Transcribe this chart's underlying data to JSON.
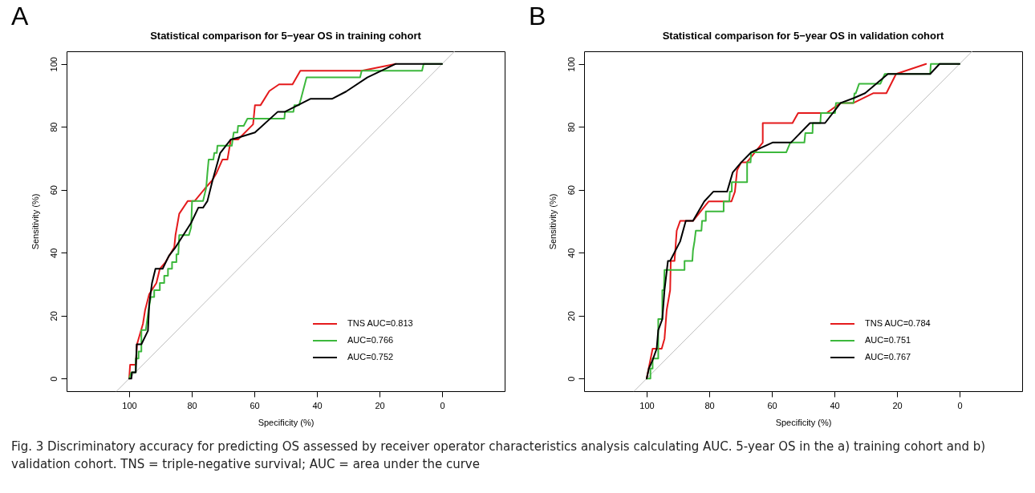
{
  "chart_data": [
    {
      "type": "line",
      "title": "Statistical comparison for 5−year OS in training cohort",
      "xlabel": "Specificity (%)",
      "ylabel": "Sensitivity (%)",
      "xlim": [
        120,
        -20
      ],
      "ylim": [
        -4,
        104
      ],
      "xticks": [
        100,
        80,
        60,
        40,
        20,
        0
      ],
      "yticks": [
        0,
        20,
        40,
        60,
        80,
        100
      ],
      "legend": "bottom right",
      "annotations": [
        "A",
        "Fig. 3 Discriminatory accuracy for predicting OS assessed by receiver operator characteristics analysis calculating AUC. 5-year OS in the a) training cohort and b) validation cohort. TNS = triple-negative survival; AUC = area under the curve"
      ],
      "series": [
        {
          "color": "#bebebe",
          "x": [
            104,
            -4
          ],
          "values": [
            -4,
            104
          ]
        },
        {
          "name": "TNS AUC=0.813",
          "color": "#e41a1c",
          "x": [
            100,
            99.7,
            97.9,
            97.5,
            95.6,
            94.9,
            93.6,
            91.3,
            90.2,
            88.4,
            85.6,
            85.2,
            84.0,
            81.3,
            79.1,
            75.7,
            73.4,
            72.1,
            70.2,
            68.6,
            67.5,
            65.2,
            60.4,
            59.8,
            58.0,
            55.2,
            52.1,
            47.8,
            45.3,
            25.7,
            14.8
          ],
          "values": [
            0,
            4.4,
            4.4,
            10.9,
            17.4,
            21.8,
            26.8,
            30.4,
            34.9,
            37.0,
            41.7,
            45.6,
            52.4,
            56.4,
            56.4,
            60.5,
            63.1,
            65.3,
            69.6,
            69.6,
            76.0,
            76.0,
            80.8,
            86.9,
            86.9,
            91.4,
            93.5,
            93.5,
            97.8,
            97.8,
            100
          ]
        },
        {
          "name": "AUC=0.766",
          "color": "#3cb83c",
          "x": [
            100,
            99.3,
            97.9,
            97.9,
            97.0,
            97.0,
            96.1,
            96.1,
            94.7,
            93.8,
            93.1,
            92.0,
            92.0,
            90.2,
            90.2,
            88.8,
            88.8,
            87.6,
            87.6,
            86.3,
            86.3,
            84.9,
            84.9,
            84.3,
            84.0,
            80.9,
            80.2,
            79.9,
            76.4,
            75.9,
            75.4,
            75.0,
            74.6,
            73.1,
            72.8,
            72.0,
            71.8,
            67.2,
            66.6,
            65.4,
            65.2,
            63.4,
            62.2,
            50.4,
            50.2,
            47.5,
            47.2,
            45.7,
            45.1,
            44.5,
            43.3,
            26.2,
            25.7,
            6.4,
            5.9,
            0
          ],
          "values": [
            0,
            2.0,
            2.0,
            6.4,
            6.4,
            8.6,
            8.6,
            15.4,
            15.4,
            21.8,
            25.9,
            25.9,
            28.1,
            28.1,
            30.4,
            30.4,
            32.7,
            32.7,
            34.9,
            34.9,
            37.0,
            37.0,
            39.5,
            39.5,
            45.6,
            45.6,
            48.1,
            56.4,
            56.4,
            58.5,
            60.5,
            65.3,
            69.6,
            69.6,
            71.7,
            71.7,
            74.0,
            74.0,
            78.2,
            78.2,
            80.3,
            80.3,
            82.6,
            82.6,
            84.8,
            84.8,
            86.9,
            86.9,
            88.9,
            91.2,
            95.7,
            95.7,
            97.8,
            97.8,
            100,
            100
          ]
        },
        {
          "name": "AUC=0.752",
          "color": "#000000",
          "x": [
            100,
            99.3,
            99.1,
            97.9,
            97.6,
            96.1,
            94.0,
            93.6,
            92.7,
            91.6,
            89.3,
            87.3,
            85.2,
            80.2,
            77.9,
            76.4,
            75.0,
            73.4,
            70.9,
            67.5,
            64.8,
            59.8,
            52.5,
            50.2,
            42.1,
            35.2,
            30.7,
            23.9,
            14.8,
            0
          ],
          "values": [
            0,
            0,
            2.0,
            2.0,
            10.9,
            10.9,
            15.2,
            23.6,
            30.4,
            34.9,
            34.9,
            39.0,
            41.7,
            49.5,
            54.3,
            54.3,
            56.4,
            62.8,
            71.7,
            76.0,
            76.7,
            78.2,
            84.8,
            84.8,
            88.9,
            88.9,
            91.2,
            95.7,
            100,
            100
          ]
        }
      ]
    },
    {
      "type": "line",
      "title": "Statistical comparison for 5−year OS in validation cohort",
      "xlabel": "Specificity (%)",
      "ylabel": "Sensitivity (%)",
      "xlim": [
        120,
        -20
      ],
      "ylim": [
        -4,
        104
      ],
      "xticks": [
        100,
        80,
        60,
        40,
        20,
        0
      ],
      "yticks": [
        0,
        20,
        40,
        60,
        80,
        100
      ],
      "legend": "bottom right",
      "annotations": [
        "B"
      ],
      "series": [
        {
          "color": "#bebebe",
          "x": [
            104,
            -4
          ],
          "values": [
            -4,
            104
          ]
        },
        {
          "name": "TNS AUC=0.784",
          "color": "#e41a1c",
          "x": [
            100,
            98.1,
            95.2,
            94.3,
            93.6,
            92.5,
            92.3,
            91.1,
            90.4,
            89.3,
            85.2,
            80.2,
            72.9,
            71.8,
            71.1,
            69.8,
            68.0,
            62.9,
            62.9,
            53.4,
            51.6,
            42.5,
            38.0,
            33.9,
            27.5,
            23.4,
            20.3,
            10.7
          ],
          "values": [
            0,
            9.5,
            9.5,
            12.7,
            21.8,
            28.1,
            37.4,
            37.4,
            47.0,
            50.1,
            50.1,
            56.3,
            56.3,
            59.4,
            66.2,
            68.7,
            68.7,
            75.0,
            81.2,
            81.2,
            84.4,
            84.4,
            87.6,
            87.6,
            90.7,
            90.7,
            96.8,
            100
          ]
        },
        {
          "name": "AUC=0.751",
          "color": "#3cb83c",
          "x": [
            100,
            98.8,
            98.8,
            98.1,
            98.1,
            96.3,
            96.3,
            95.0,
            95.0,
            94.5,
            94.3,
            87.9,
            87.9,
            85.4,
            85.2,
            84.7,
            84.3,
            82.5,
            82.3,
            81.1,
            81.1,
            75.4,
            75.4,
            73.6,
            73.4,
            72.8,
            72.8,
            67.9,
            67.9,
            66.8,
            66.6,
            55.4,
            54.1,
            49.6,
            49.3,
            47.0,
            46.9,
            44.5,
            44.3,
            39.8,
            39.5,
            33.9,
            33.6,
            33.2,
            32.1,
            25.3,
            23.9,
            9.4,
            9.2,
            0
          ],
          "values": [
            0,
            0,
            3.2,
            3.2,
            6.4,
            6.4,
            18.9,
            18.9,
            28.1,
            28.1,
            34.5,
            34.5,
            37.4,
            37.4,
            40.7,
            43.7,
            47.0,
            47.0,
            50.1,
            50.1,
            53.1,
            53.1,
            56.3,
            56.3,
            59.4,
            59.4,
            62.4,
            62.4,
            68.7,
            68.7,
            71.9,
            71.9,
            75.0,
            75.0,
            78.0,
            78.0,
            81.2,
            81.2,
            84.4,
            84.4,
            87.6,
            87.6,
            90.6,
            90.6,
            93.7,
            93.7,
            96.8,
            96.8,
            100,
            100
          ]
        },
        {
          "name": "AUC=0.767",
          "color": "#000000",
          "x": [
            100,
            99.3,
            98.1,
            96.8,
            96.3,
            95.0,
            94.3,
            93.2,
            92.5,
            89.3,
            87.5,
            85.2,
            81.6,
            78.7,
            74.3,
            72.5,
            69.8,
            66.6,
            59.8,
            53.9,
            47.8,
            43.0,
            38.0,
            33.9,
            30.2,
            22.9,
            20.3,
            9.4,
            6.4,
            0
          ],
          "values": [
            0,
            3.2,
            5.9,
            9.5,
            15.4,
            18.9,
            28.1,
            37.4,
            37.4,
            43.6,
            50.1,
            50.1,
            56.3,
            59.4,
            59.4,
            65.5,
            68.7,
            71.9,
            75.0,
            75.0,
            81.2,
            81.2,
            87.6,
            89.1,
            90.7,
            96.8,
            96.8,
            96.8,
            100,
            100
          ]
        }
      ]
    }
  ]
}
